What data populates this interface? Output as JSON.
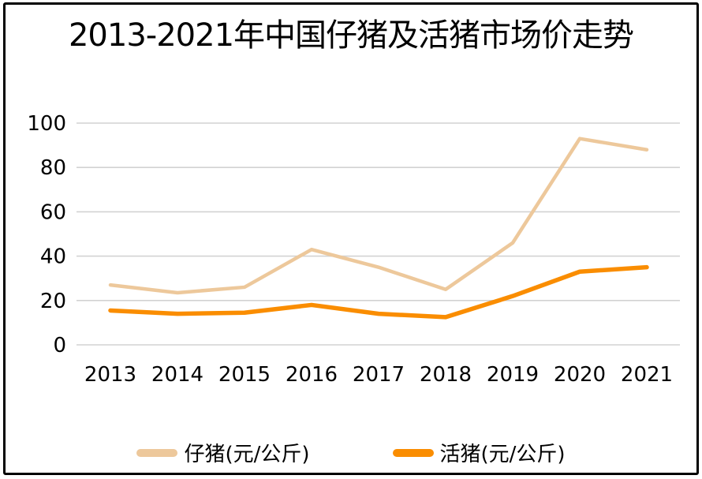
{
  "title": "2013-2021年中国仔猪及活猪市场价走势",
  "chart_data": {
    "type": "line",
    "title": "2013-2021年中国仔猪及活猪市场价走势",
    "categories": [
      "2013",
      "2014",
      "2015",
      "2016",
      "2017",
      "2018",
      "2019",
      "2020",
      "2021"
    ],
    "series": [
      {
        "name": "仔猪(元/公斤)",
        "color": "#EDC89B",
        "values": [
          27,
          23.5,
          26,
          43,
          35,
          25,
          46,
          93,
          88
        ]
      },
      {
        "name": "活猪(元/公斤)",
        "color": "#FA8D00",
        "values": [
          15.5,
          14,
          14.5,
          18,
          14,
          12.5,
          22,
          33,
          35
        ]
      }
    ],
    "ylim": [
      0,
      100
    ],
    "yticks": [
      0,
      20,
      40,
      60,
      80,
      100
    ],
    "xlabel": "",
    "ylabel": "",
    "grid": true,
    "legend_position": "bottom"
  },
  "colors": {
    "grid": "#D2D2D2",
    "axis_text": "#000000",
    "border": "#000000",
    "background": "#FFFFFF"
  }
}
